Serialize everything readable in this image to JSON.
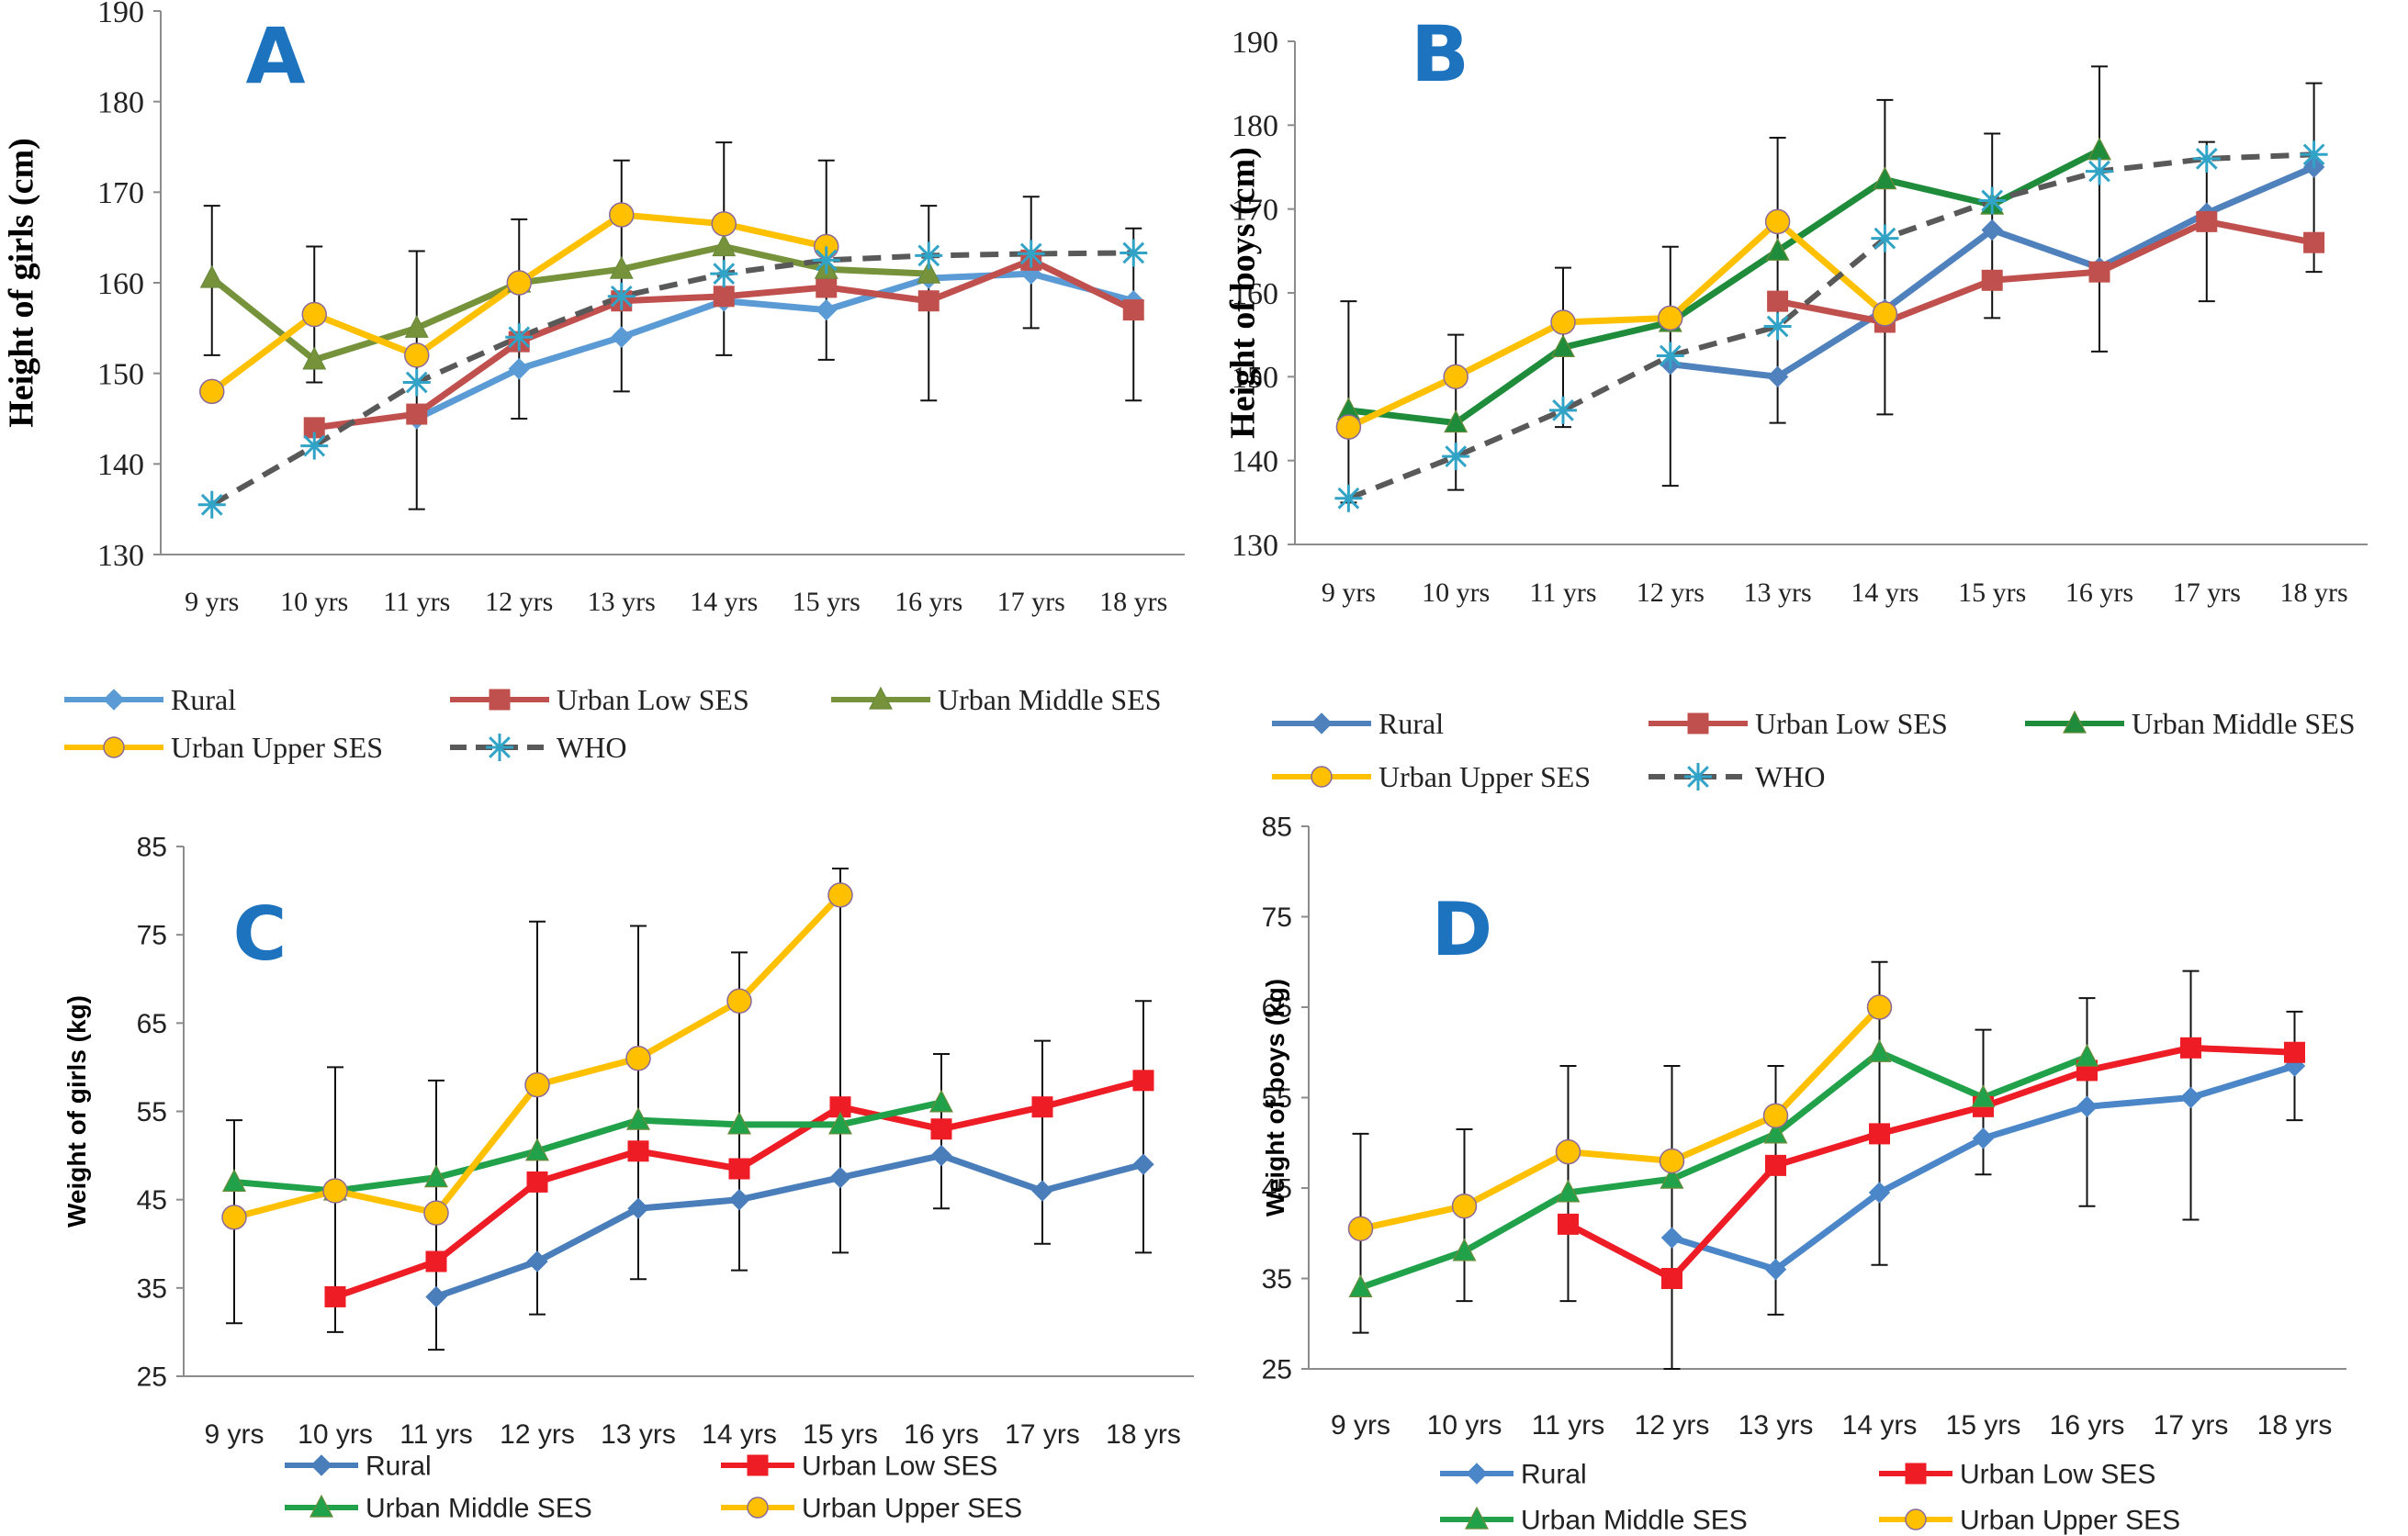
{
  "chart_data": [
    {
      "panel": "A",
      "type": "line",
      "ylabel": "Height of girls (cm)",
      "xlabel": "",
      "ylim": [
        130,
        190
      ],
      "yticks": [
        130,
        140,
        150,
        160,
        170,
        180,
        190
      ],
      "categories": [
        "9 yrs",
        "10 yrs",
        "11 yrs",
        "12 yrs",
        "13 yrs",
        "14 yrs",
        "15 yrs",
        "16 yrs",
        "17 yrs",
        "18 yrs"
      ],
      "grid": false,
      "legend": "bottom",
      "series": [
        {
          "name": "Rural",
          "color": "#5b9bd5",
          "marker": "diamond",
          "values": [
            null,
            null,
            145,
            150.5,
            154,
            158,
            157,
            160.5,
            161,
            158
          ]
        },
        {
          "name": "Urban Low SES",
          "color": "#c0504d",
          "marker": "square",
          "values": [
            null,
            144,
            145.5,
            153.5,
            158,
            158.5,
            159.5,
            158,
            162.5,
            157
          ]
        },
        {
          "name": "Urban Middle SES",
          "color": "#76933c",
          "marker": "triangle",
          "values": [
            160.5,
            151.5,
            155,
            160,
            161.5,
            164,
            161.5,
            161,
            null,
            null
          ]
        },
        {
          "name": "Urban Upper SES",
          "color": "#ffc000",
          "marker": "circle",
          "values": [
            148,
            156.5,
            152,
            160,
            167.5,
            166.5,
            164,
            null,
            null,
            null
          ]
        },
        {
          "name": "WHO",
          "color": "#595959",
          "marker": "star",
          "dashed": true,
          "values": [
            135.5,
            142,
            149,
            154,
            158.5,
            161,
            162.5,
            163,
            163.2,
            163.3
          ]
        }
      ],
      "errors": [
        [
          152,
          168.5
        ],
        [
          149,
          164
        ],
        [
          135,
          163.5
        ],
        [
          145,
          167
        ],
        [
          148,
          173.5
        ],
        [
          152,
          175.5
        ],
        [
          151.5,
          173.5
        ],
        [
          147,
          168.5
        ],
        [
          155,
          169.5
        ],
        [
          147,
          166
        ]
      ]
    },
    {
      "panel": "B",
      "type": "line",
      "ylabel": "Height of boys (cm)",
      "xlabel": "",
      "ylim": [
        130,
        190
      ],
      "yticks": [
        130,
        140,
        150,
        160,
        170,
        180,
        190
      ],
      "categories": [
        "9 yrs",
        "10 yrs",
        "11 yrs",
        "12 yrs",
        "13 yrs",
        "14 yrs",
        "15 yrs",
        "16 yrs",
        "17 yrs",
        "18 yrs"
      ],
      "grid": false,
      "legend": "bottom",
      "series": [
        {
          "name": "Rural",
          "color": "#4f81bd",
          "marker": "diamond",
          "values": [
            null,
            null,
            null,
            151.5,
            150,
            158,
            167.5,
            163,
            169.5,
            175
          ]
        },
        {
          "name": "Urban Low SES",
          "color": "#c0504d",
          "marker": "square",
          "values": [
            null,
            null,
            null,
            null,
            159,
            156.5,
            161.5,
            162.5,
            168.5,
            166
          ]
        },
        {
          "name": "Urban Middle SES",
          "color": "#1e8c3a",
          "marker": "triangle",
          "values": [
            146,
            144.5,
            153.5,
            156.5,
            165,
            173.5,
            170.5,
            177,
            null,
            null
          ]
        },
        {
          "name": "Urban Upper SES",
          "color": "#ffc000",
          "marker": "circle",
          "values": [
            144,
            150,
            156.5,
            157,
            168.5,
            157.5,
            null,
            null,
            null,
            null
          ]
        },
        {
          "name": "WHO",
          "color": "#595959",
          "marker": "star",
          "dashed": true,
          "values": [
            135.5,
            140.5,
            146,
            152.5,
            156,
            166.5,
            171,
            174.5,
            176,
            176.5
          ]
        }
      ],
      "errors": [
        [
          135,
          159
        ],
        [
          136.5,
          155
        ],
        [
          144,
          163
        ],
        [
          137,
          165.5
        ],
        [
          144.5,
          178.5
        ],
        [
          145.5,
          183
        ],
        [
          157,
          179
        ],
        [
          153,
          187
        ],
        [
          159,
          178
        ],
        [
          162.5,
          185
        ]
      ]
    },
    {
      "panel": "C",
      "type": "line",
      "ylabel": "Weight of girls (kg)",
      "xlabel": "",
      "ylim": [
        25,
        85
      ],
      "yticks": [
        25,
        35,
        45,
        55,
        65,
        75,
        85
      ],
      "categories": [
        "9 yrs",
        "10 yrs",
        "11 yrs",
        "12 yrs",
        "13 yrs",
        "14 yrs",
        "15 yrs",
        "16 yrs",
        "17 yrs",
        "18 yrs"
      ],
      "grid": false,
      "legend": "bottom",
      "series": [
        {
          "name": "Rural",
          "color": "#4a7ebb",
          "marker": "diamond",
          "values": [
            null,
            null,
            34,
            38,
            44,
            45,
            47.5,
            50,
            46,
            49
          ]
        },
        {
          "name": "Urban Low SES",
          "color": "#ee1c25",
          "marker": "square",
          "values": [
            null,
            34,
            38,
            47,
            50.5,
            48.5,
            55.5,
            53,
            55.5,
            58.5
          ]
        },
        {
          "name": "Urban Middle SES",
          "color": "#21a24a",
          "marker": "triangle",
          "values": [
            47,
            46,
            47.5,
            50.5,
            54,
            53.5,
            53.5,
            56,
            null,
            null
          ]
        },
        {
          "name": "Urban Upper SES",
          "color": "#ffc000",
          "marker": "circle",
          "values": [
            43,
            46,
            43.5,
            58,
            61,
            67.5,
            79.5,
            null,
            null,
            null
          ]
        }
      ],
      "errors": [
        [
          31,
          54
        ],
        [
          30,
          60
        ],
        [
          28,
          58.5
        ],
        [
          32,
          76.5
        ],
        [
          36,
          76
        ],
        [
          37,
          73
        ],
        [
          39,
          82.5
        ],
        [
          44,
          61.5
        ],
        [
          40,
          63
        ],
        [
          39,
          67.5
        ]
      ]
    },
    {
      "panel": "D",
      "type": "line",
      "ylabel": "Weight of boys (kg)",
      "xlabel": "",
      "ylim": [
        25,
        85
      ],
      "yticks": [
        25,
        35,
        45,
        55,
        65,
        75,
        85
      ],
      "categories": [
        "9 yrs",
        "10 yrs",
        "11 yrs",
        "12 yrs",
        "13 yrs",
        "14 yrs",
        "15 yrs",
        "16 yrs",
        "17 yrs",
        "18 yrs"
      ],
      "grid": false,
      "legend": "bottom",
      "series": [
        {
          "name": "Rural",
          "color": "#4a86c8",
          "marker": "diamond",
          "values": [
            null,
            null,
            null,
            39.5,
            36,
            44.5,
            50.5,
            54,
            55,
            58.5
          ]
        },
        {
          "name": "Urban Low SES",
          "color": "#ee1c25",
          "marker": "square",
          "values": [
            null,
            null,
            41,
            35,
            47.5,
            51,
            54,
            58,
            60.5,
            60
          ]
        },
        {
          "name": "Urban Middle SES",
          "color": "#21a24a",
          "marker": "triangle",
          "values": [
            34,
            38,
            44.5,
            46,
            51,
            60,
            55,
            59.5,
            null,
            null
          ]
        },
        {
          "name": "Urban Upper SES",
          "color": "#ffc000",
          "marker": "circle",
          "values": [
            40.5,
            43,
            49,
            48,
            53,
            65,
            null,
            null,
            null,
            null
          ]
        }
      ],
      "errors": [
        [
          29,
          51
        ],
        [
          32.5,
          51.5
        ],
        [
          32.5,
          58.5
        ],
        [
          25,
          58.5
        ],
        [
          31,
          58.5
        ],
        [
          36.5,
          70
        ],
        [
          46.5,
          62.5
        ],
        [
          43,
          66
        ],
        [
          41.5,
          69
        ],
        [
          52.5,
          64.5
        ]
      ]
    }
  ]
}
